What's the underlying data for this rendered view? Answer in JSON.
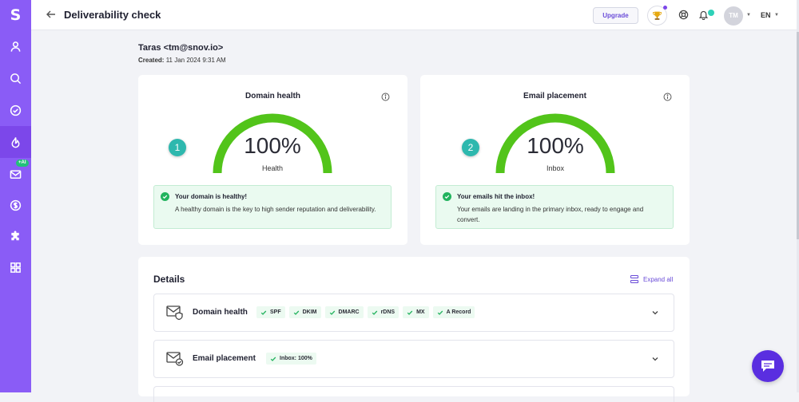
{
  "app": {
    "logo": "S",
    "ai_badge": "+AI"
  },
  "header": {
    "title": "Deliverability check",
    "upgrade_label": "Upgrade",
    "avatar_initials": "TM",
    "language": "EN"
  },
  "sidebar": {
    "items": [
      {
        "name": "prospects",
        "icon": "user-icon",
        "active": false
      },
      {
        "name": "search",
        "icon": "search-icon",
        "active": false
      },
      {
        "name": "verifier",
        "icon": "check-circle-icon",
        "active": false
      },
      {
        "name": "warmup",
        "icon": "flame-icon",
        "active": true
      },
      {
        "name": "campaigns",
        "icon": "mail-icon",
        "active": false
      },
      {
        "name": "deals",
        "icon": "dollar-icon",
        "active": false
      },
      {
        "name": "integrations",
        "icon": "puzzle-icon",
        "active": false
      },
      {
        "name": "apps",
        "icon": "grid-icon",
        "active": false
      }
    ]
  },
  "check": {
    "sender": "Taras <tm@snov.io>",
    "created_label": "Created:",
    "created_value": "11 Jan 2024 9:31 AM"
  },
  "cards": [
    {
      "title": "Domain health",
      "step": "1",
      "value": "100%",
      "percent": 100,
      "label": "Health",
      "alert_title": "Your domain is healthy!",
      "alert_text": "A healthy domain is the key to high sender reputation and deliverability."
    },
    {
      "title": "Email placement",
      "step": "2",
      "value": "100%",
      "percent": 100,
      "label": "Inbox",
      "alert_title": "Your emails hit the inbox!",
      "alert_text": "Your emails are landing in the primary inbox, ready to engage and convert."
    }
  ],
  "details": {
    "title": "Details",
    "expand_all": "Expand all",
    "rows": [
      {
        "title": "Domain health",
        "chips": [
          "SPF",
          "DKIM",
          "DMARC",
          "rDNS",
          "MX",
          "A Record"
        ]
      },
      {
        "title": "Email placement",
        "chips": [
          "Inbox: 100%"
        ]
      }
    ]
  },
  "colors": {
    "sidebar": "#8a5cf6",
    "gauge": "#52c41a",
    "accent": "#6a4cd8",
    "success": "#22b35e",
    "step_badge": "#2eb8ae"
  }
}
